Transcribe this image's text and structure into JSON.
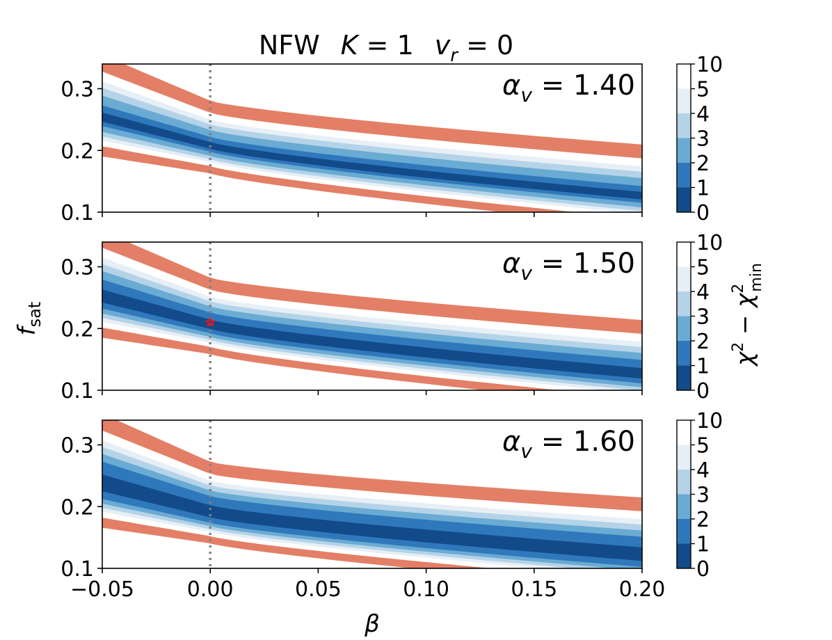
{
  "chart_data": {
    "type": "contour",
    "title": {
      "main": "NFW",
      "K_symbol": "K",
      "eq1": " = 1",
      "v_symbol": "v",
      "v_sub": "r",
      "eq2": " = 0"
    },
    "xlabel": "β",
    "ylabel": {
      "base": "f",
      "sub": "sat"
    },
    "colorbar_label": {
      "chi": "χ",
      "sup": "2",
      "minus": " − ",
      "sub": "min"
    },
    "xlim": [
      -0.05,
      0.2
    ],
    "ylim": [
      0.1,
      0.34
    ],
    "x_ticks": [
      -0.05,
      0.0,
      0.05,
      0.1,
      0.15,
      0.2
    ],
    "x_tick_labels": [
      "−0.05",
      "0.00",
      "0.05",
      "0.10",
      "0.15",
      "0.20"
    ],
    "y_ticks": [
      0.1,
      0.2,
      0.3
    ],
    "y_tick_labels": [
      "0.1",
      "0.2",
      "0.3"
    ],
    "reference_line_beta": 0.0,
    "levels": [
      0,
      1,
      2,
      3,
      4,
      5,
      10
    ],
    "level_labels": [
      "0",
      "1",
      "2",
      "3",
      "4",
      "5",
      "10"
    ],
    "level_colors": [
      "#134b8a",
      "#3078bc",
      "#6aabd3",
      "#b5d3e8",
      "#e7eff6",
      "#ffffff",
      "#e37f66"
    ],
    "panels": [
      {
        "alpha_symbol": "α",
        "alpha_sub": "v",
        "alpha_value": " = 1.40",
        "ridge": {
          "beta0": 0.0,
          "f0": 0.207,
          "f_end": 0.125,
          "slope": -0.33
        },
        "widths": {
          "l1": 0.02,
          "l2": 0.035,
          "l3": 0.047,
          "l4": 0.057,
          "l5": 0.072,
          "l10": 0.098
        },
        "best_fit": null
      },
      {
        "alpha_symbol": "α",
        "alpha_sub": "v",
        "alpha_value": " = 1.50",
        "ridge": {
          "beta0": 0.0,
          "f0": 0.205,
          "f_end": 0.125,
          "slope": -0.32
        },
        "widths": {
          "l1": 0.028,
          "l2": 0.041,
          "l3": 0.052,
          "l4": 0.062,
          "l5": 0.077,
          "l10": 0.103
        },
        "best_fit": {
          "beta": 0.0,
          "fsat": 0.21
        }
      },
      {
        "alpha_symbol": "α",
        "alpha_sub": "v",
        "alpha_value": " = 1.60",
        "ridge": {
          "beta0": 0.0,
          "f0": 0.19,
          "f_end": 0.12,
          "slope": -0.28
        },
        "widths": {
          "l1": 0.036,
          "l2": 0.048,
          "l3": 0.059,
          "l4": 0.069,
          "l5": 0.084,
          "l10": 0.11
        },
        "best_fit": null
      }
    ]
  }
}
